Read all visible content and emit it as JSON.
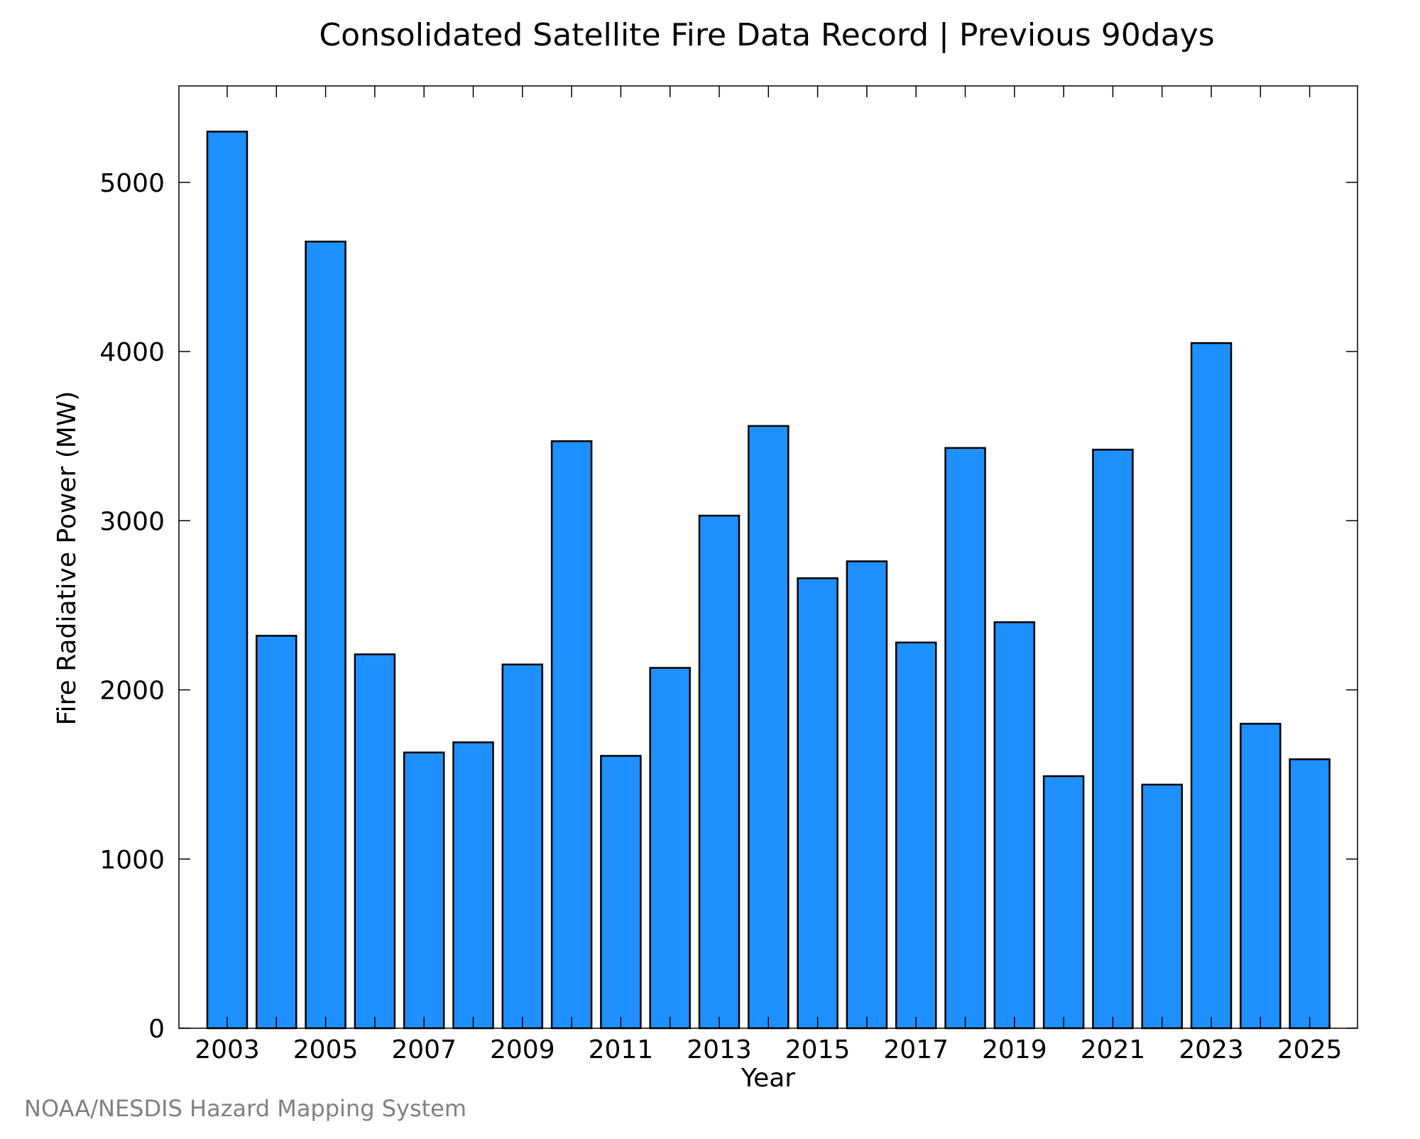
{
  "chart_data": {
    "type": "bar",
    "title": "Consolidated Satellite Fire Data Record | Previous 90days",
    "xlabel": "Year",
    "ylabel": "Fire Radiative Power (MW)",
    "source": "NOAA/NESDIS Hazard Mapping System",
    "categories": [
      "2003",
      "2004",
      "2005",
      "2006",
      "2007",
      "2008",
      "2009",
      "2010",
      "2011",
      "2012",
      "2013",
      "2014",
      "2015",
      "2016",
      "2017",
      "2018",
      "2019",
      "2020",
      "2021",
      "2022",
      "2023",
      "2024",
      "2025"
    ],
    "values": [
      5300,
      2320,
      4650,
      2210,
      1630,
      1690,
      2150,
      3470,
      1610,
      2130,
      3030,
      3560,
      2660,
      2760,
      2280,
      3430,
      2400,
      1490,
      3420,
      1440,
      4050,
      1800,
      1590
    ],
    "x_tick_labels": [
      "2003",
      "2005",
      "2007",
      "2009",
      "2011",
      "2013",
      "2015",
      "2017",
      "2019",
      "2021",
      "2023",
      "2025"
    ],
    "y_ticks": [
      0,
      1000,
      2000,
      3000,
      4000,
      5000
    ],
    "ylim": [
      0,
      5570
    ],
    "grid": false,
    "colors": {
      "bar_fill": "#1e90ff",
      "bar_stroke": "#000000",
      "source_text": "#808080"
    }
  }
}
